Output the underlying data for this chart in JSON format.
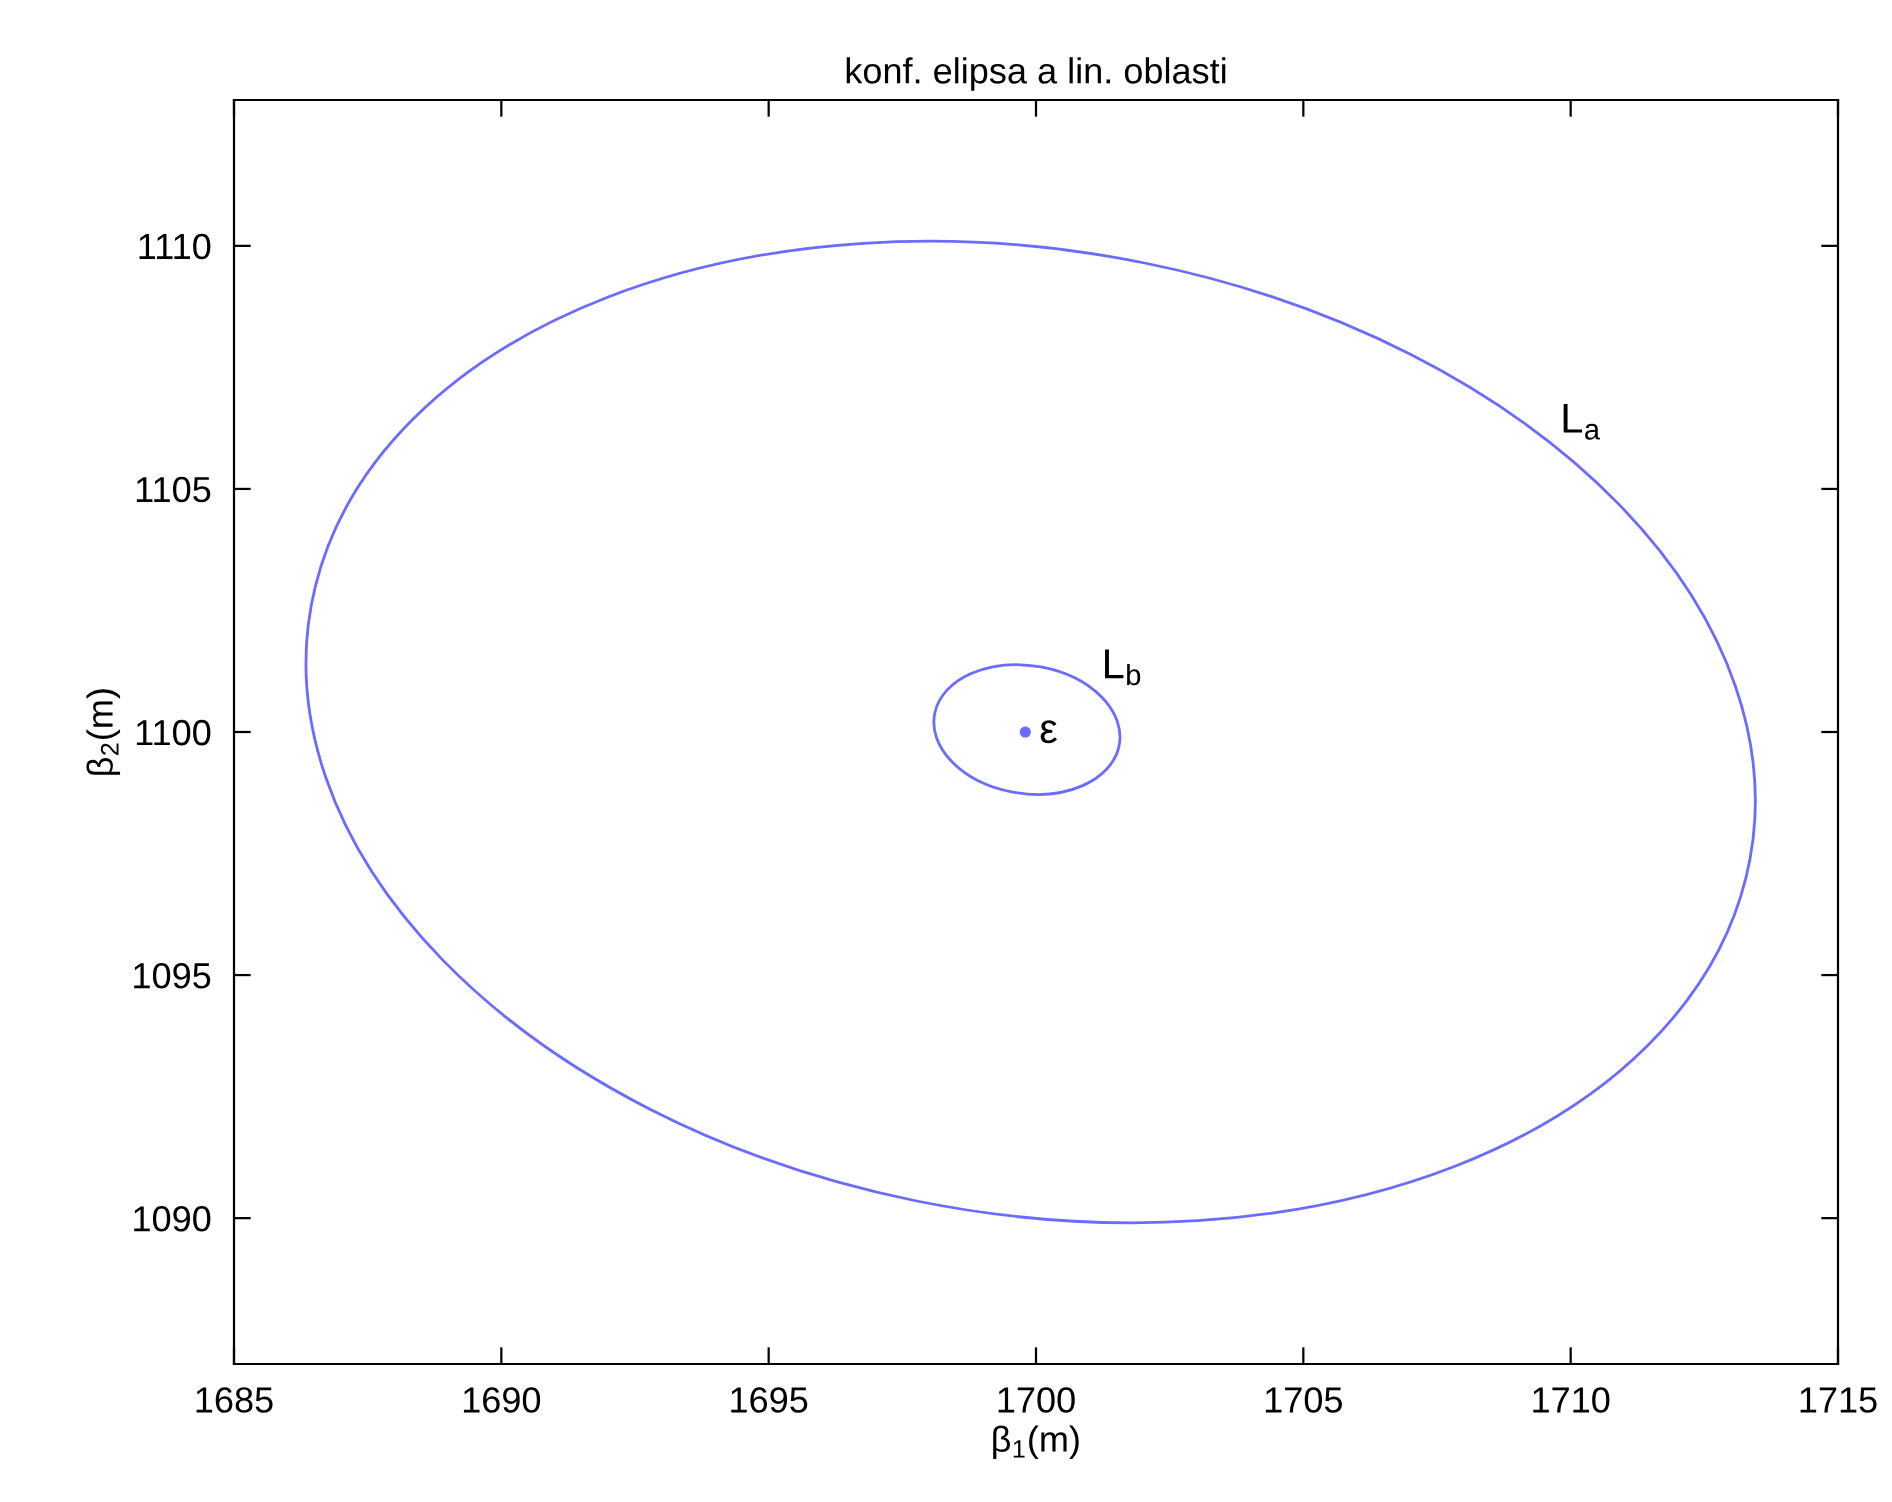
{
  "chart_data": {
    "type": "scatter",
    "title": "konf. elipsa a lin. oblasti",
    "xlabel": "β$_{1}$(m)",
    "ylabel": "β$_{2}$(m)",
    "xlim": [
      1685,
      1715
    ],
    "ylim": [
      1087,
      1113
    ],
    "xticks": [
      1685,
      1690,
      1695,
      1700,
      1705,
      1710,
      1715
    ],
    "yticks": [
      1090,
      1095,
      1100,
      1105,
      1110
    ],
    "grid": false,
    "legend": false,
    "marker": "circle",
    "series": [
      {
        "name": "ε",
        "color": "#6b6bff",
        "x": [
          1699.8
        ],
        "values": [
          1100.0
        ]
      }
    ],
    "annotations": [
      "L$_{a}$",
      "L$_{b}$"
    ]
  }
}
